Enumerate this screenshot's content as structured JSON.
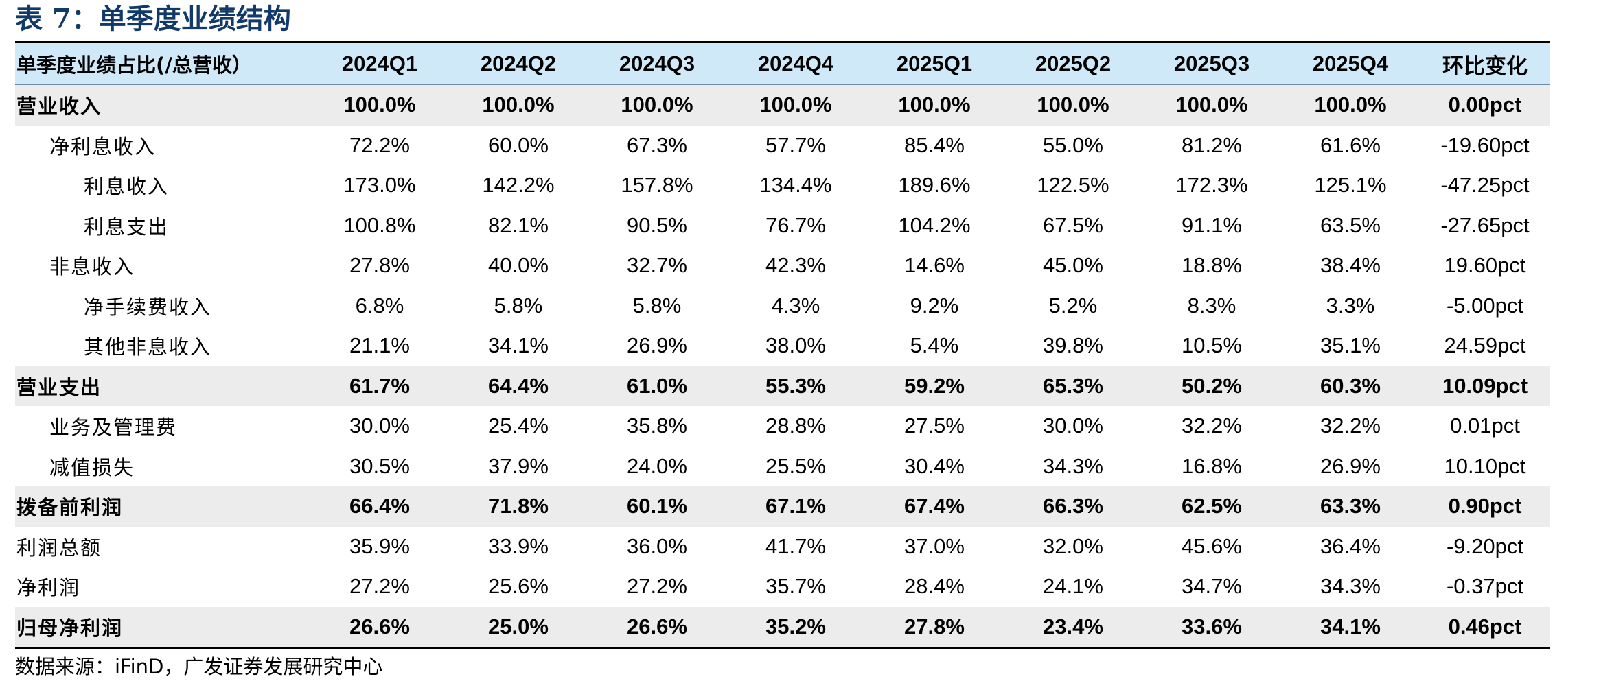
{
  "title": "表 7：单季度业绩结构",
  "table": {
    "header": [
      "单季度业绩占比(/总营收）",
      "2024Q1",
      "2024Q2",
      "2024Q3",
      "2024Q4",
      "2025Q1",
      "2025Q2",
      "2025Q3",
      "2025Q4",
      "环比变化"
    ],
    "rows": [
      {
        "label": "营业收入",
        "bold": true,
        "level": 0,
        "values": [
          "100.0%",
          "100.0%",
          "100.0%",
          "100.0%",
          "100.0%",
          "100.0%",
          "100.0%",
          "100.0%",
          "0.00pct"
        ]
      },
      {
        "label": "净利息收入",
        "bold": false,
        "level": 1,
        "values": [
          "72.2%",
          "60.0%",
          "67.3%",
          "57.7%",
          "85.4%",
          "55.0%",
          "81.2%",
          "61.6%",
          "-19.60pct"
        ]
      },
      {
        "label": "利息收入",
        "bold": false,
        "level": 2,
        "values": [
          "173.0%",
          "142.2%",
          "157.8%",
          "134.4%",
          "189.6%",
          "122.5%",
          "172.3%",
          "125.1%",
          "-47.25pct"
        ]
      },
      {
        "label": "利息支出",
        "bold": false,
        "level": 2,
        "values": [
          "100.8%",
          "82.1%",
          "90.5%",
          "76.7%",
          "104.2%",
          "67.5%",
          "91.1%",
          "63.5%",
          "-27.65pct"
        ]
      },
      {
        "label": "非息收入",
        "bold": false,
        "level": 1,
        "values": [
          "27.8%",
          "40.0%",
          "32.7%",
          "42.3%",
          "14.6%",
          "45.0%",
          "18.8%",
          "38.4%",
          "19.60pct"
        ]
      },
      {
        "label": "净手续费收入",
        "bold": false,
        "level": 2,
        "values": [
          "6.8%",
          "5.8%",
          "5.8%",
          "4.3%",
          "9.2%",
          "5.2%",
          "8.3%",
          "3.3%",
          "-5.00pct"
        ]
      },
      {
        "label": "其他非息收入",
        "bold": false,
        "level": 2,
        "values": [
          "21.1%",
          "34.1%",
          "26.9%",
          "38.0%",
          "5.4%",
          "39.8%",
          "10.5%",
          "35.1%",
          "24.59pct"
        ]
      },
      {
        "label": "营业支出",
        "bold": true,
        "level": 0,
        "values": [
          "61.7%",
          "64.4%",
          "61.0%",
          "55.3%",
          "59.2%",
          "65.3%",
          "50.2%",
          "60.3%",
          "10.09pct"
        ]
      },
      {
        "label": "业务及管理费",
        "bold": false,
        "level": 1,
        "values": [
          "30.0%",
          "25.4%",
          "35.8%",
          "28.8%",
          "27.5%",
          "30.0%",
          "32.2%",
          "32.2%",
          "0.01pct"
        ]
      },
      {
        "label": "减值损失",
        "bold": false,
        "level": 1,
        "values": [
          "30.5%",
          "37.9%",
          "24.0%",
          "25.5%",
          "30.4%",
          "34.3%",
          "16.8%",
          "26.9%",
          "10.10pct"
        ]
      },
      {
        "label": "拨备前利润",
        "bold": true,
        "level": 0,
        "values": [
          "66.4%",
          "71.8%",
          "60.1%",
          "67.1%",
          "67.4%",
          "66.3%",
          "62.5%",
          "63.3%",
          "0.90pct"
        ]
      },
      {
        "label": "利润总额",
        "bold": false,
        "level": 0,
        "values": [
          "35.9%",
          "33.9%",
          "36.0%",
          "41.7%",
          "37.0%",
          "32.0%",
          "45.6%",
          "36.4%",
          "-9.20pct"
        ]
      },
      {
        "label": "净利润",
        "bold": false,
        "level": 0,
        "values": [
          "27.2%",
          "25.6%",
          "27.2%",
          "35.7%",
          "28.4%",
          "24.1%",
          "34.7%",
          "34.3%",
          "-0.37pct"
        ]
      },
      {
        "label": "归母净利润",
        "bold": true,
        "level": 0,
        "values": [
          "26.6%",
          "25.0%",
          "26.6%",
          "35.2%",
          "27.8%",
          "23.4%",
          "33.6%",
          "34.1%",
          "0.46pct"
        ]
      }
    ]
  },
  "source": "数据来源：iFinD，广发证券发展研究中心",
  "colors": {
    "title": "#123a68",
    "header_bg": "#cfe9f8",
    "highlight_row_bg": "#ececec"
  }
}
